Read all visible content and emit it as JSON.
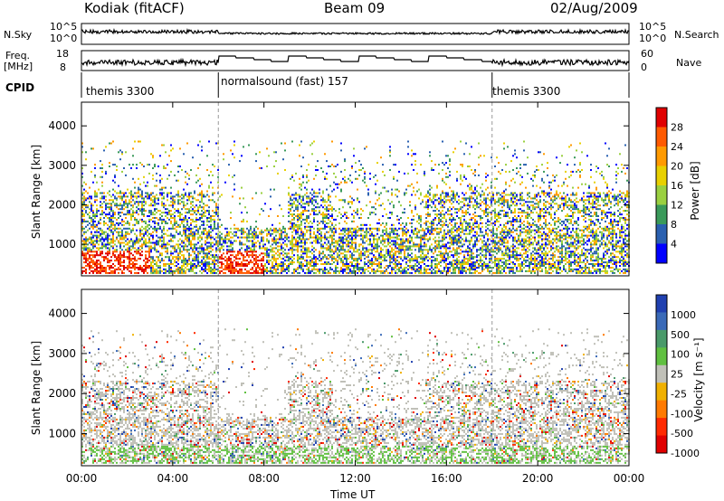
{
  "header": {
    "station": "Kodiak (fitACF)",
    "beam": "Beam 09",
    "date": "02/Aug/2009"
  },
  "left_labels": {
    "nsky": "N.Sky",
    "freq_line1": "Freq.",
    "freq_line2": "[MHz]",
    "cpid": "CPID"
  },
  "right_labels": {
    "nsearch": "N.Search",
    "nave": "Nave"
  },
  "noise_axis": {
    "top": "10^5",
    "bottom": "10^0"
  },
  "freq_axis": {
    "top": "18",
    "bottom": "8"
  },
  "nave_axis": {
    "top": "60",
    "bottom": "0"
  },
  "cpid_segments": [
    {
      "label": "themis 3300",
      "start_hour": 0,
      "end_hour": 6
    },
    {
      "label": "normalsound (fast) 157",
      "start_hour": 6,
      "end_hour": 18
    },
    {
      "label": "themis 3300",
      "start_hour": 18,
      "end_hour": 24
    }
  ],
  "chart_data": [
    {
      "type": "heatmap",
      "panel": "power",
      "ylabel": "Slant Range [km]",
      "yticks": [
        "1000",
        "2000",
        "3000",
        "4000"
      ],
      "ylim": [
        200,
        4600
      ],
      "colorbar_label": "Power [dB]",
      "colorbar_ticks": [
        "28",
        "24",
        "20",
        "16",
        "12",
        "8",
        "4"
      ],
      "colorbar_colors": [
        "#e00000",
        "#ff5a00",
        "#ff9a00",
        "#e8d000",
        "#9ad040",
        "#3a9a5a",
        "#2a60b0",
        "#0000ff"
      ]
    },
    {
      "type": "heatmap",
      "panel": "velocity",
      "ylabel": "Slant Range [km]",
      "yticks": [
        "1000",
        "2000",
        "3000",
        "4000"
      ],
      "ylim": [
        200,
        4600
      ],
      "colorbar_label": "Velocity [m s⁻¹]",
      "colorbar_ticks": [
        "1000",
        "500",
        "100",
        "25",
        "-25",
        "-100",
        "-500",
        "-1000"
      ],
      "colorbar_colors": [
        "#2040b0",
        "#3a6ab8",
        "#4a9a6a",
        "#60c040",
        "#c0c0b8",
        "#f0b000",
        "#ff7a00",
        "#ff2a00",
        "#e00000"
      ]
    }
  ],
  "xaxis": {
    "label": "Time UT",
    "ticks": [
      "00:00",
      "04:00",
      "08:00",
      "12:00",
      "16:00",
      "20:00",
      "00:00"
    ],
    "range_hours": [
      0,
      24
    ]
  }
}
